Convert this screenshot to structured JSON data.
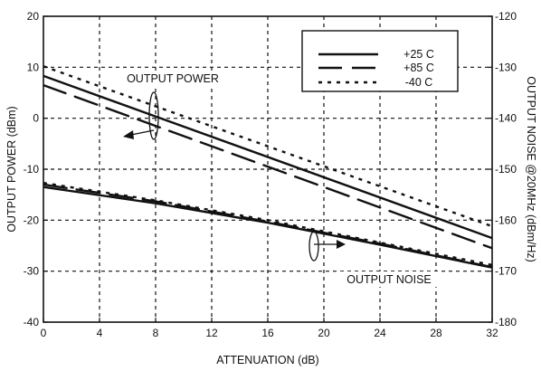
{
  "chart_data": {
    "type": "line",
    "xlabel": "ATTENUATION (dB)",
    "ylabel": "OUTPUT POWER  (dBm)",
    "y2label": "OUTPUT NOISE  @20MHz (dBm/Hz)",
    "xlim": [
      0,
      32
    ],
    "ylim": [
      -40,
      20
    ],
    "y2lim": [
      -180,
      -120
    ],
    "x_ticks": [
      0,
      4,
      8,
      12,
      16,
      20,
      24,
      28,
      32
    ],
    "y_ticks": [
      -40,
      -30,
      -20,
      -10,
      0,
      10,
      20
    ],
    "y2_ticks": [
      -180,
      -170,
      -160,
      -150,
      -140,
      -130,
      -120
    ],
    "grid": true,
    "legend_position": "top-right",
    "legend": [
      {
        "label": "+25 C",
        "style": "solid"
      },
      {
        "label": "+85 C",
        "style": "long-dash"
      },
      {
        "label": "-40 C",
        "style": "dotted"
      }
    ],
    "annotations": {
      "power": "OUTPUT POWER",
      "noise": "OUTPUT NOISE"
    },
    "series": [
      {
        "group": "power",
        "style": "solid",
        "axis": "left",
        "x": [
          0,
          32
        ],
        "y": [
          8.3,
          -23.5
        ]
      },
      {
        "group": "power",
        "style": "long-dash",
        "axis": "left",
        "x": [
          0,
          32
        ],
        "y": [
          6.5,
          -25.5
        ]
      },
      {
        "group": "power",
        "style": "dotted",
        "axis": "left",
        "x": [
          0,
          32
        ],
        "y": [
          10.2,
          -21.2
        ]
      },
      {
        "group": "noise",
        "style": "solid",
        "axis": "right",
        "x": [
          0,
          8,
          16,
          24,
          32
        ],
        "y": [
          -153.5,
          -156.7,
          -160.5,
          -164.8,
          -169.3
        ]
      },
      {
        "group": "noise",
        "style": "long-dash",
        "axis": "right",
        "x": [
          0,
          8,
          16,
          24,
          32
        ],
        "y": [
          -153.0,
          -156.3,
          -160.3,
          -164.6,
          -169.2
        ]
      },
      {
        "group": "noise",
        "style": "dotted",
        "axis": "right",
        "x": [
          0,
          8,
          16,
          24,
          32
        ],
        "y": [
          -152.7,
          -156.1,
          -160.0,
          -164.4,
          -168.8
        ]
      }
    ],
    "colors": {
      "line": "#111111",
      "grid": "#111111",
      "background": "#ffffff"
    }
  }
}
